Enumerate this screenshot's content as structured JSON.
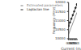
{
  "chart_data": {
    "type": "line",
    "x_label": "Current (mA)",
    "y_label": "Frequency (MHz)",
    "x": [
      0.5,
      0.6,
      0.7,
      0.8,
      0.9,
      1.0,
      1.1
    ],
    "series": [
      {
        "name": "Laplacian line",
        "color": "#222222",
        "marker": "circle",
        "values": [
          10700,
          10900,
          11100,
          11300,
          11500,
          11700,
          11900
        ]
      },
      {
        "name": "Estimated parameters",
        "color": "#777777",
        "values": [
          10250,
          10450,
          10650,
          10850,
          11050,
          11250,
          11450
        ]
      }
    ],
    "xlim": [
      0.5,
      1.1
    ],
    "xticks": [
      0.5,
      0.6,
      0.7,
      0.8,
      0.9,
      {
        "value": 1,
        "label": "1.0"
      },
      1.1
    ],
    "ylim": [
      10000,
      12000
    ],
    "yticks": [
      10000,
      10500,
      11000,
      11500,
      12000
    ],
    "grid": false,
    "legend": "upper left"
  }
}
